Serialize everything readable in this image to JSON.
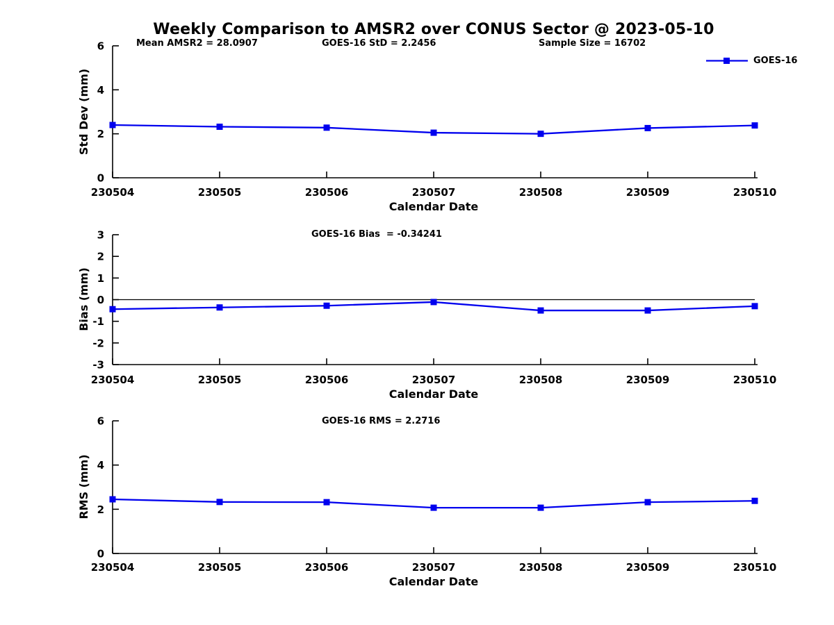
{
  "title": "Weekly Comparison to AMSR2 over CONUS Sector @ 2023-05-10",
  "legend": {
    "label": "GOES-16"
  },
  "colors": {
    "line": "#0000ee",
    "axis": "#000000",
    "text": "#000000"
  },
  "chart_data": [
    {
      "type": "line",
      "annotations": [
        "Mean AMSR2 = 28.0907",
        "GOES-16 StD = 2.2456",
        "Sample Size = 16702"
      ],
      "categories": [
        "230504",
        "230505",
        "230506",
        "230507",
        "230508",
        "230509",
        "230510"
      ],
      "series": [
        {
          "name": "GOES-16",
          "values": [
            2.4,
            2.32,
            2.28,
            2.05,
            2.0,
            2.26,
            2.38
          ]
        }
      ],
      "xlabel": "Calendar Date",
      "ylabel": "Std Dev (mm)",
      "ylim": [
        0,
        6
      ],
      "yticks": [
        0,
        2,
        4,
        6
      ],
      "zero_line": false,
      "grid": false,
      "marker": "square",
      "legend_position": "top-right"
    },
    {
      "type": "line",
      "annotations": [
        "GOES-16 Bias  = -0.34241"
      ],
      "categories": [
        "230504",
        "230505",
        "230506",
        "230507",
        "230508",
        "230509",
        "230510"
      ],
      "series": [
        {
          "name": "GOES-16",
          "values": [
            -0.44,
            -0.36,
            -0.28,
            -0.11,
            -0.5,
            -0.5,
            -0.3
          ]
        }
      ],
      "xlabel": "Calendar Date",
      "ylabel": "Bias (mm)",
      "ylim": [
        -3,
        3
      ],
      "yticks": [
        3,
        2,
        1,
        0,
        -1,
        -2,
        -3
      ],
      "zero_line": true,
      "grid": false,
      "marker": "square",
      "legend_position": "none"
    },
    {
      "type": "line",
      "annotations": [
        "GOES-16 RMS = 2.2716"
      ],
      "categories": [
        "230504",
        "230505",
        "230506",
        "230507",
        "230508",
        "230509",
        "230510"
      ],
      "series": [
        {
          "name": "GOES-16",
          "values": [
            2.45,
            2.33,
            2.32,
            2.07,
            2.07,
            2.32,
            2.38
          ]
        }
      ],
      "xlabel": "Calendar Date",
      "ylabel": "RMS (mm)",
      "ylim": [
        0,
        6
      ],
      "yticks": [
        0,
        2,
        4,
        6
      ],
      "zero_line": false,
      "grid": false,
      "marker": "square",
      "legend_position": "none"
    }
  ]
}
